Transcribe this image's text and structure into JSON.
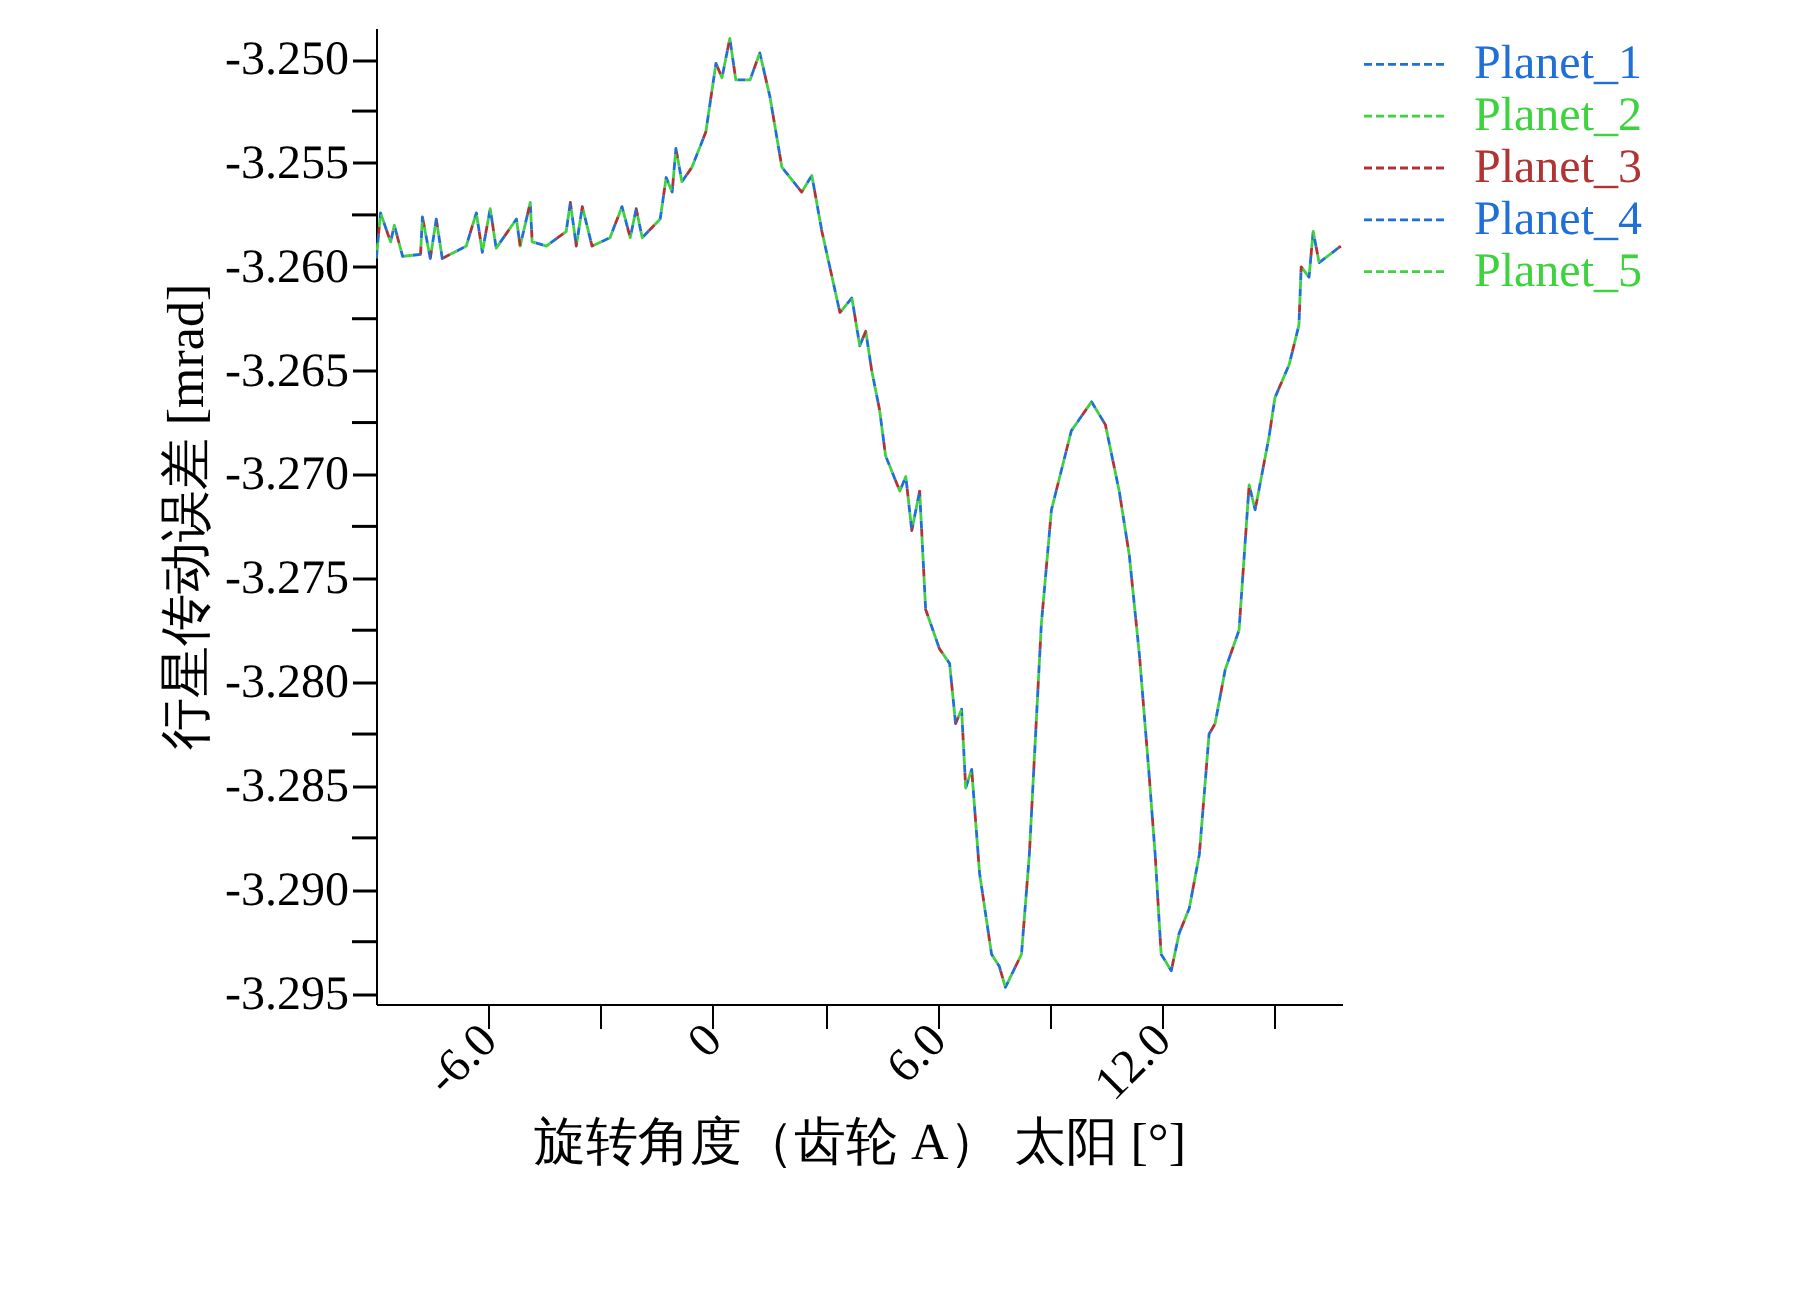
{
  "chart_data": {
    "type": "line",
    "xlabel": "旋转角度（齿轮 A） 太阳 [°]",
    "ylabel": "行星传动误差 [mrad]",
    "x": [
      -8.99,
      -8.88,
      -8.61,
      -8.51,
      -8.29,
      -7.81,
      -7.76,
      -7.55,
      -7.39,
      -7.23,
      -6.59,
      -6.32,
      -6.16,
      -5.95,
      -5.79,
      -5.25,
      -5.15,
      -4.88,
      -4.83,
      -4.45,
      -3.92,
      -3.81,
      -3.65,
      -3.49,
      -3.23,
      -2.75,
      -2.43,
      -2.21,
      -2.05,
      -1.89,
      -1.41,
      -1.25,
      -1.09,
      -0.99,
      -0.83,
      -0.56,
      -0.19,
      0.08,
      0.24,
      0.45,
      0.61,
      0.99,
      1.25,
      1.52,
      1.84,
      2.37,
      2.64,
      2.91,
      3.39,
      3.71,
      3.92,
      4.08,
      4.24,
      4.45,
      4.61,
      4.99,
      5.15,
      5.31,
      5.52,
      5.68,
      6.05,
      6.32,
      6.48,
      6.64,
      6.75,
      6.91,
      7.12,
      7.44,
      7.65,
      7.81,
      8.08,
      8.24,
      8.45,
      8.77,
      9.04,
      9.57,
      10.11,
      10.48,
      10.85,
      11.12,
      11.39,
      11.65,
      11.81,
      11.97,
      12.24,
      12.45,
      12.72,
      12.99,
      13.25,
      13.41,
      13.68,
      14.05,
      14.32,
      14.48,
      14.85,
      15.01,
      15.39,
      15.65,
      15.71,
      15.92,
      16.03,
      16.19,
      16.77
    ],
    "series": [
      {
        "name": "Planet_1",
        "color": "#1f6fd6",
        "values": [
          -3.2596,
          -3.2574,
          -3.2588,
          -3.258,
          -3.2595,
          -3.2594,
          -3.2576,
          -3.2596,
          -3.2577,
          -3.2596,
          -3.259,
          -3.2574,
          -3.2593,
          -3.2572,
          -3.2591,
          -3.2577,
          -3.259,
          -3.2569,
          -3.2588,
          -3.259,
          -3.2583,
          -3.2569,
          -3.259,
          -3.2571,
          -3.259,
          -3.2586,
          -3.2571,
          -3.2586,
          -3.2572,
          -3.2586,
          -3.2577,
          -3.2557,
          -3.2564,
          -3.2543,
          -3.2559,
          -3.2552,
          -3.2535,
          -3.2502,
          -3.2509,
          -3.249,
          -3.251,
          -3.251,
          -3.2497,
          -3.2518,
          -3.2552,
          -3.2564,
          -3.2556,
          -3.2583,
          -3.2622,
          -3.2615,
          -3.2638,
          -3.2631,
          -3.265,
          -3.2669,
          -3.2691,
          -3.2708,
          -3.2701,
          -3.2727,
          -3.2708,
          -3.2765,
          -3.2784,
          -3.2791,
          -3.282,
          -3.2813,
          -3.2851,
          -3.2842,
          -3.2892,
          -3.2931,
          -3.2937,
          -3.2947,
          -3.2937,
          -3.2931,
          -3.2883,
          -3.2772,
          -3.2717,
          -3.2679,
          -3.2665,
          -3.2676,
          -3.2708,
          -3.2739,
          -3.2787,
          -3.2845,
          -3.2883,
          -3.2931,
          -3.2939,
          -3.2921,
          -3.2909,
          -3.2883,
          -3.2825,
          -3.282,
          -3.2794,
          -3.2775,
          -3.2705,
          -3.2717,
          -3.2682,
          -3.2663,
          -3.2647,
          -3.2628,
          -3.26,
          -3.2605,
          -3.2583,
          -3.2598,
          -3.259
        ]
      },
      {
        "name": "Planet_2",
        "color": "#3ed23e",
        "values": [
          -3.2596,
          -3.2574,
          -3.2588,
          -3.258,
          -3.2595,
          -3.2594,
          -3.2576,
          -3.2596,
          -3.2577,
          -3.2596,
          -3.259,
          -3.2574,
          -3.2593,
          -3.2572,
          -3.2591,
          -3.2577,
          -3.259,
          -3.2569,
          -3.2588,
          -3.259,
          -3.2583,
          -3.2569,
          -3.259,
          -3.2571,
          -3.259,
          -3.2586,
          -3.2571,
          -3.2586,
          -3.2572,
          -3.2586,
          -3.2577,
          -3.2557,
          -3.2564,
          -3.2543,
          -3.2559,
          -3.2552,
          -3.2535,
          -3.2502,
          -3.2509,
          -3.249,
          -3.251,
          -3.251,
          -3.2497,
          -3.2518,
          -3.2552,
          -3.2564,
          -3.2556,
          -3.2583,
          -3.2622,
          -3.2615,
          -3.2638,
          -3.2631,
          -3.265,
          -3.2669,
          -3.2691,
          -3.2708,
          -3.2701,
          -3.2727,
          -3.2708,
          -3.2765,
          -3.2784,
          -3.2791,
          -3.282,
          -3.2813,
          -3.2851,
          -3.2842,
          -3.2892,
          -3.2931,
          -3.2937,
          -3.2947,
          -3.2937,
          -3.2931,
          -3.2883,
          -3.2772,
          -3.2717,
          -3.2679,
          -3.2665,
          -3.2676,
          -3.2708,
          -3.2739,
          -3.2787,
          -3.2845,
          -3.2883,
          -3.2931,
          -3.2939,
          -3.2921,
          -3.2909,
          -3.2883,
          -3.2825,
          -3.282,
          -3.2794,
          -3.2775,
          -3.2705,
          -3.2717,
          -3.2682,
          -3.2663,
          -3.2647,
          -3.2628,
          -3.26,
          -3.2605,
          -3.2583,
          -3.2598,
          -3.259
        ]
      },
      {
        "name": "Planet_3",
        "color": "#b03434",
        "values": [
          -3.2596,
          -3.2574,
          -3.2588,
          -3.258,
          -3.2595,
          -3.2594,
          -3.2576,
          -3.2596,
          -3.2577,
          -3.2596,
          -3.259,
          -3.2574,
          -3.2593,
          -3.2572,
          -3.2591,
          -3.2577,
          -3.259,
          -3.2569,
          -3.2588,
          -3.259,
          -3.2583,
          -3.2569,
          -3.259,
          -3.2571,
          -3.259,
          -3.2586,
          -3.2571,
          -3.2586,
          -3.2572,
          -3.2586,
          -3.2577,
          -3.2557,
          -3.2564,
          -3.2543,
          -3.2559,
          -3.2552,
          -3.2535,
          -3.2502,
          -3.2509,
          -3.249,
          -3.251,
          -3.251,
          -3.2497,
          -3.2518,
          -3.2552,
          -3.2564,
          -3.2556,
          -3.2583,
          -3.2622,
          -3.2615,
          -3.2638,
          -3.2631,
          -3.265,
          -3.2669,
          -3.2691,
          -3.2708,
          -3.2701,
          -3.2727,
          -3.2708,
          -3.2765,
          -3.2784,
          -3.2791,
          -3.282,
          -3.2813,
          -3.2851,
          -3.2842,
          -3.2892,
          -3.2931,
          -3.2937,
          -3.2947,
          -3.2937,
          -3.2931,
          -3.2883,
          -3.2772,
          -3.2717,
          -3.2679,
          -3.2665,
          -3.2676,
          -3.2708,
          -3.2739,
          -3.2787,
          -3.2845,
          -3.2883,
          -3.2931,
          -3.2939,
          -3.2921,
          -3.2909,
          -3.2883,
          -3.2825,
          -3.282,
          -3.2794,
          -3.2775,
          -3.2705,
          -3.2717,
          -3.2682,
          -3.2663,
          -3.2647,
          -3.2628,
          -3.26,
          -3.2605,
          -3.2583,
          -3.2598,
          -3.259
        ]
      },
      {
        "name": "Planet_4",
        "color": "#1f6fd6",
        "values": [
          -3.2596,
          -3.2574,
          -3.2588,
          -3.258,
          -3.2595,
          -3.2594,
          -3.2576,
          -3.2596,
          -3.2577,
          -3.2596,
          -3.259,
          -3.2574,
          -3.2593,
          -3.2572,
          -3.2591,
          -3.2577,
          -3.259,
          -3.2569,
          -3.2588,
          -3.259,
          -3.2583,
          -3.2569,
          -3.259,
          -3.2571,
          -3.259,
          -3.2586,
          -3.2571,
          -3.2586,
          -3.2572,
          -3.2586,
          -3.2577,
          -3.2557,
          -3.2564,
          -3.2543,
          -3.2559,
          -3.2552,
          -3.2535,
          -3.2502,
          -3.2509,
          -3.249,
          -3.251,
          -3.251,
          -3.2497,
          -3.2518,
          -3.2552,
          -3.2564,
          -3.2556,
          -3.2583,
          -3.2622,
          -3.2615,
          -3.2638,
          -3.2631,
          -3.265,
          -3.2669,
          -3.2691,
          -3.2708,
          -3.2701,
          -3.2727,
          -3.2708,
          -3.2765,
          -3.2784,
          -3.2791,
          -3.282,
          -3.2813,
          -3.2851,
          -3.2842,
          -3.2892,
          -3.2931,
          -3.2937,
          -3.2947,
          -3.2937,
          -3.2931,
          -3.2883,
          -3.2772,
          -3.2717,
          -3.2679,
          -3.2665,
          -3.2676,
          -3.2708,
          -3.2739,
          -3.2787,
          -3.2845,
          -3.2883,
          -3.2931,
          -3.2939,
          -3.2921,
          -3.2909,
          -3.2883,
          -3.2825,
          -3.282,
          -3.2794,
          -3.2775,
          -3.2705,
          -3.2717,
          -3.2682,
          -3.2663,
          -3.2647,
          -3.2628,
          -3.26,
          -3.2605,
          -3.2583,
          -3.2598,
          -3.259
        ]
      },
      {
        "name": "Planet_5",
        "color": "#3ed23e",
        "values": [
          -3.2596,
          -3.2574,
          -3.2588,
          -3.258,
          -3.2595,
          -3.2594,
          -3.2576,
          -3.2596,
          -3.2577,
          -3.2596,
          -3.259,
          -3.2574,
          -3.2593,
          -3.2572,
          -3.2591,
          -3.2577,
          -3.259,
          -3.2569,
          -3.2588,
          -3.259,
          -3.2583,
          -3.2569,
          -3.259,
          -3.2571,
          -3.259,
          -3.2586,
          -3.2571,
          -3.2586,
          -3.2572,
          -3.2586,
          -3.2577,
          -3.2557,
          -3.2564,
          -3.2543,
          -3.2559,
          -3.2552,
          -3.2535,
          -3.2502,
          -3.2509,
          -3.249,
          -3.251,
          -3.251,
          -3.2497,
          -3.2518,
          -3.2552,
          -3.2564,
          -3.2556,
          -3.2583,
          -3.2622,
          -3.2615,
          -3.2638,
          -3.2631,
          -3.265,
          -3.2669,
          -3.2691,
          -3.2708,
          -3.2701,
          -3.2727,
          -3.2708,
          -3.2765,
          -3.2784,
          -3.2791,
          -3.282,
          -3.2813,
          -3.2851,
          -3.2842,
          -3.2892,
          -3.2931,
          -3.2937,
          -3.2947,
          -3.2937,
          -3.2931,
          -3.2883,
          -3.2772,
          -3.2717,
          -3.2679,
          -3.2665,
          -3.2676,
          -3.2708,
          -3.2739,
          -3.2787,
          -3.2845,
          -3.2883,
          -3.2931,
          -3.2939,
          -3.2921,
          -3.2909,
          -3.2883,
          -3.2825,
          -3.282,
          -3.2794,
          -3.2775,
          -3.2705,
          -3.2717,
          -3.2682,
          -3.2663,
          -3.2647,
          -3.2628,
          -3.26,
          -3.2605,
          -3.2583,
          -3.2598,
          -3.259
        ]
      }
    ],
    "xlim": [
      -9,
      16.8
    ],
    "xticks": [
      {
        "value": -6,
        "label": "-6.0"
      },
      {
        "value": -3,
        "label": null
      },
      {
        "value": 0,
        "label": "0"
      },
      {
        "value": 3,
        "label": null
      },
      {
        "value": 6,
        "label": "6.0"
      },
      {
        "value": 9,
        "label": null
      },
      {
        "value": 12,
        "label": "12.0"
      },
      {
        "value": 15,
        "label": null
      }
    ],
    "ylim": [
      -3.2955,
      -3.2485
    ],
    "yticks": [
      {
        "value": -3.25,
        "label": "-3.250"
      },
      {
        "value": -3.2525,
        "label": null
      },
      {
        "value": -3.255,
        "label": "-3.255"
      },
      {
        "value": -3.2575,
        "label": null
      },
      {
        "value": -3.26,
        "label": "-3.260"
      },
      {
        "value": -3.2625,
        "label": null
      },
      {
        "value": -3.265,
        "label": "-3.265"
      },
      {
        "value": -3.2675,
        "label": null
      },
      {
        "value": -3.27,
        "label": "-3.270"
      },
      {
        "value": -3.2725,
        "label": null
      },
      {
        "value": -3.275,
        "label": "-3.275"
      },
      {
        "value": -3.2775,
        "label": null
      },
      {
        "value": -3.28,
        "label": "-3.280"
      },
      {
        "value": -3.2825,
        "label": null
      },
      {
        "value": -3.285,
        "label": "-3.285"
      },
      {
        "value": -3.2875,
        "label": null
      },
      {
        "value": -3.29,
        "label": "-3.290"
      },
      {
        "value": -3.2925,
        "label": null
      },
      {
        "value": -3.295,
        "label": "-3.295"
      }
    ],
    "grid": false,
    "legend": "top right",
    "marker": "none",
    "line_style": "dashed"
  }
}
